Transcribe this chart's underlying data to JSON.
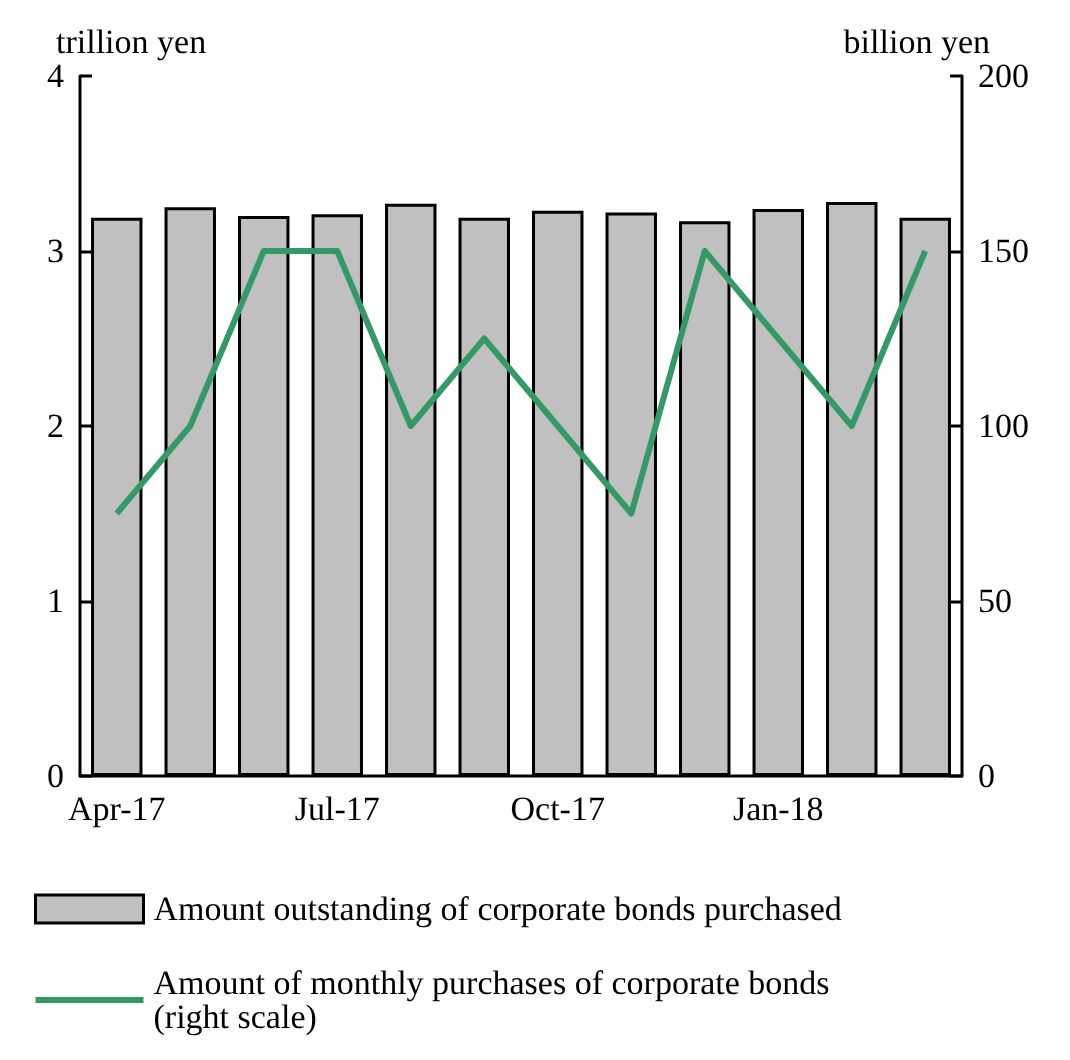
{
  "chart_data": {
    "type": "bar",
    "categories": [
      "Apr-17",
      null,
      null,
      "Jul-17",
      null,
      null,
      "Oct-17",
      null,
      null,
      "Jan-18",
      null,
      null
    ],
    "ylabel": "trillion yen",
    "y2label": "billion yen",
    "ylim": [
      0,
      4
    ],
    "yticks": [
      0,
      1,
      2,
      3,
      4
    ],
    "y2lim": [
      0,
      200
    ],
    "y2ticks": [
      0,
      50,
      100,
      150,
      200
    ],
    "grid": false,
    "legend": "bottom",
    "marker": "none",
    "series": [
      {
        "name": "Amount outstanding of corporate bonds purchased",
        "color": "#c0c0c0",
        "values": [
          3.19,
          3.25,
          3.2,
          3.21,
          3.27,
          3.19,
          3.23,
          3.22,
          3.17,
          3.24,
          3.28,
          3.19
        ]
      },
      {
        "name": "Amount of monthly purchases of corporate bonds (right scale)",
        "type": "line",
        "axis": "y2",
        "color": "#339966",
        "values": [
          75,
          100,
          150,
          150,
          100,
          125,
          100,
          75,
          150,
          125,
          100,
          150
        ]
      }
    ]
  }
}
